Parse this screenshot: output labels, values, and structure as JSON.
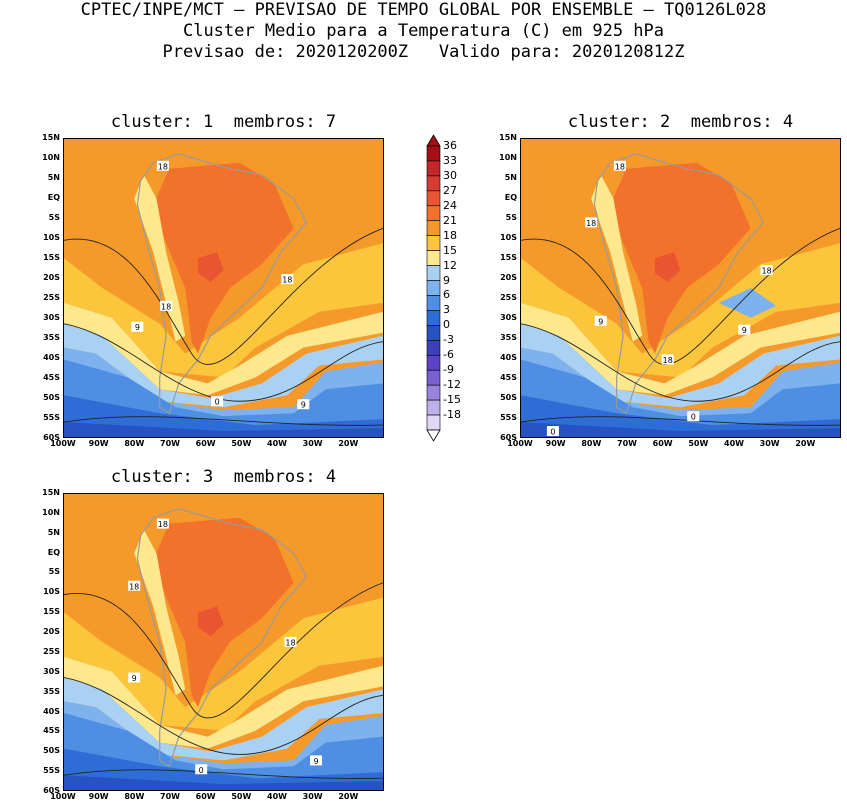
{
  "header": {
    "line1": "CPTEC/INPE/MCT – PREVISAO DE TEMPO GLOBAL POR ENSEMBLE – TQ0126L028",
    "line2": "Cluster Medio para a Temperatura (C) em 925 hPa",
    "line3": "Previsao de: 2020120200Z   Valido para: 2020120812Z"
  },
  "panels": [
    {
      "title": "cluster: 1  membros: 7",
      "contour_labels": [
        "18",
        "18",
        "18",
        "9",
        "0",
        "9"
      ]
    },
    {
      "title": "cluster: 2  membros: 4",
      "contour_labels": [
        "18",
        "18",
        "18",
        "9",
        "9",
        "18",
        "0",
        "0"
      ]
    },
    {
      "title": "cluster: 3  membros: 4",
      "contour_labels": [
        "18",
        "18",
        "18",
        "9",
        "0",
        "9"
      ]
    }
  ],
  "lat_labels": [
    "15N",
    "10N",
    "5N",
    "EQ",
    "5S",
    "10S",
    "15S",
    "20S",
    "25S",
    "30S",
    "35S",
    "40S",
    "45S",
    "50S",
    "55S",
    "60S"
  ],
  "lon_labels": [
    "100W",
    "90W",
    "80W",
    "70W",
    "60W",
    "50W",
    "40W",
    "30W",
    "20W"
  ],
  "colorbar": {
    "labels": [
      "36",
      "33",
      "30",
      "27",
      "24",
      "21",
      "18",
      "15",
      "12",
      "9",
      "6",
      "3",
      "0",
      "-3",
      "-6",
      "-9",
      "-12",
      "-15",
      "-18"
    ],
    "colors": [
      "#a50e17",
      "#c4262a",
      "#d93a32",
      "#e95530",
      "#f2712b",
      "#f59a2a",
      "#fbc53c",
      "#fde88e",
      "#a8d1f4",
      "#7db2ee",
      "#4e8fe4",
      "#2e6dd6",
      "#2752c2",
      "#3c41b9",
      "#5b43c4",
      "#7a5fd0",
      "#9a83dc",
      "#bfb0ea",
      "#e0d8f5"
    ]
  }
}
